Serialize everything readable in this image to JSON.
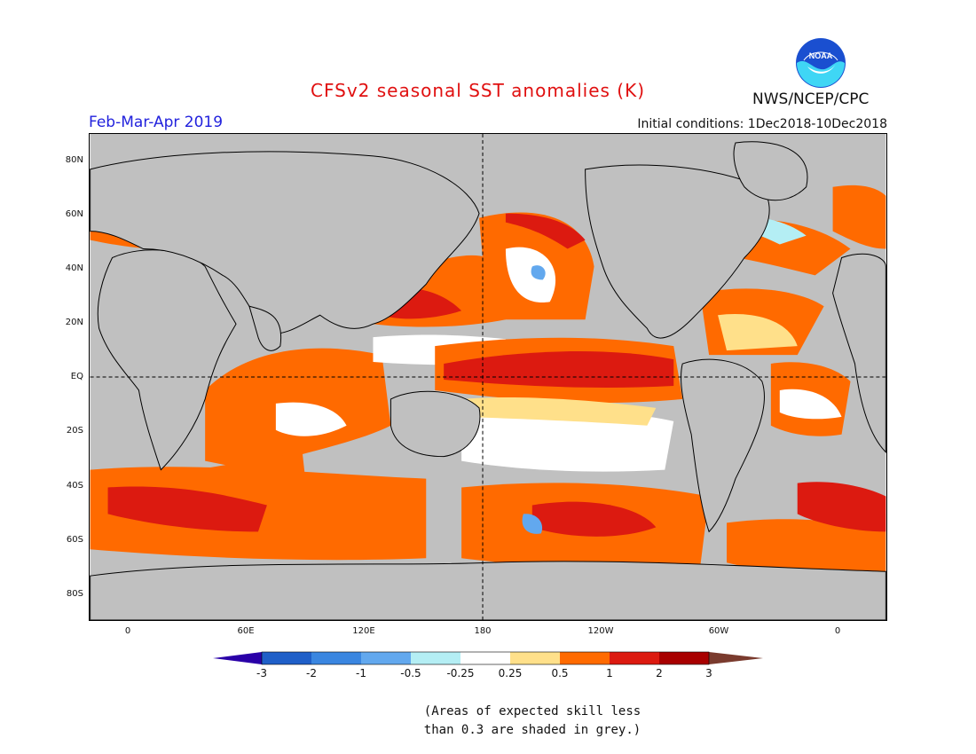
{
  "header": {
    "title": "CFSv2 seasonal SST anomalies (K)",
    "period": "Feb-Mar-Apr 2019",
    "initial_conditions": "Initial conditions: 1Dec2018-10Dec2018",
    "agency": "NWS/NCEP/CPC",
    "logo_text": "NOAA"
  },
  "map": {
    "lat_labels": [
      "80N",
      "60N",
      "40N",
      "20N",
      "EQ",
      "20S",
      "40S",
      "60S",
      "80S"
    ],
    "lon_labels": [
      "0",
      "60E",
      "120E",
      "180",
      "120W",
      "60W",
      "0"
    ],
    "lat_range": [
      -90,
      90
    ],
    "lon_range": [
      -20,
      385
    ],
    "reference_lines": [
      "equator",
      "date line (180)"
    ],
    "land_color": "#c0c0c0",
    "low_skill_color": "#c0c0c0"
  },
  "colorbar": {
    "labels": [
      "-3",
      "-2",
      "-1",
      "-0.5",
      "-0.25",
      "0.25",
      "0.5",
      "1",
      "2",
      "3"
    ],
    "colors": [
      "#2a00a8",
      "#1f5fc8",
      "#3a86e0",
      "#62a8ee",
      "#b4eef4",
      "#ffffff",
      "#ffe08a",
      "#ff6a00",
      "#dc1a10",
      "#a80000",
      "#7a3b2e"
    ]
  },
  "note": {
    "line1": "(Areas of expected skill less",
    "line2": "than 0.3 are shaded in grey.)"
  }
}
